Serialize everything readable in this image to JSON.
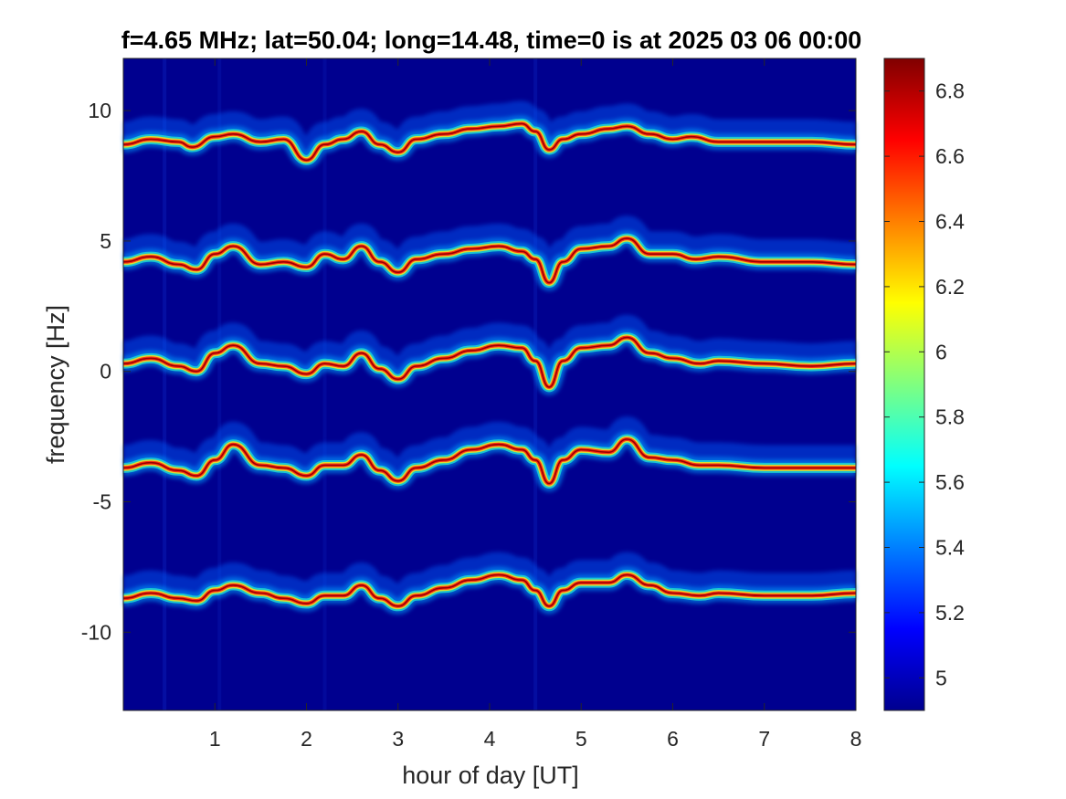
{
  "chart_data": {
    "type": "heatmap",
    "title": "f=4.65 MHz;  lat=50.04; long=14.48, time=0 is at 2025 03 06 00:00",
    "xlabel": "hour of day [UT]",
    "ylabel": "frequency [Hz]",
    "xlim": [
      0,
      8
    ],
    "ylim": [
      -13,
      12
    ],
    "xticks": [
      1,
      2,
      3,
      4,
      5,
      6,
      7,
      8
    ],
    "xtick_labels": [
      "1",
      "2",
      "3",
      "4",
      "5",
      "6",
      "7",
      "8"
    ],
    "yticks": [
      10,
      5,
      0,
      -5,
      -10
    ],
    "ytick_labels": [
      "10",
      "5",
      "0",
      "-5",
      "-10"
    ],
    "colorbar": {
      "range": [
        4.9,
        6.9
      ],
      "ticks": [
        6.8,
        6.6,
        6.4,
        6.2,
        6.0,
        5.8,
        5.6,
        5.4,
        5.2,
        5.0
      ],
      "tick_labels": [
        "6.8",
        "6.6",
        "6.4",
        "6.2",
        "6",
        "5.8",
        "5.6",
        "5.4",
        "5.2",
        "5"
      ],
      "colormap": "jet"
    },
    "background_color": "#00008f",
    "traces": [
      {
        "base_freq": 8.8,
        "points": [
          [
            0,
            8.7
          ],
          [
            0.3,
            8.9
          ],
          [
            0.6,
            8.8
          ],
          [
            0.75,
            8.6
          ],
          [
            1.0,
            9.0
          ],
          [
            1.2,
            9.1
          ],
          [
            1.5,
            8.8
          ],
          [
            1.75,
            8.9
          ],
          [
            2.0,
            8.1
          ],
          [
            2.2,
            8.7
          ],
          [
            2.4,
            8.9
          ],
          [
            2.6,
            9.2
          ],
          [
            2.8,
            8.7
          ],
          [
            3.0,
            8.4
          ],
          [
            3.2,
            8.9
          ],
          [
            3.5,
            9.1
          ],
          [
            3.8,
            9.3
          ],
          [
            4.1,
            9.4
          ],
          [
            4.35,
            9.5
          ],
          [
            4.5,
            9.2
          ],
          [
            4.65,
            8.5
          ],
          [
            4.8,
            8.9
          ],
          [
            5.0,
            9.1
          ],
          [
            5.3,
            9.3
          ],
          [
            5.5,
            9.4
          ],
          [
            5.75,
            9.1
          ],
          [
            6.0,
            8.9
          ],
          [
            6.2,
            9.0
          ],
          [
            6.5,
            8.8
          ],
          [
            7.0,
            8.8
          ],
          [
            7.5,
            8.8
          ],
          [
            8.0,
            8.7
          ]
        ]
      },
      {
        "base_freq": 4.2,
        "points": [
          [
            0,
            4.2
          ],
          [
            0.3,
            4.4
          ],
          [
            0.6,
            4.1
          ],
          [
            0.8,
            3.9
          ],
          [
            1.0,
            4.5
          ],
          [
            1.2,
            4.8
          ],
          [
            1.5,
            4.1
          ],
          [
            1.75,
            4.2
          ],
          [
            2.0,
            4.0
          ],
          [
            2.2,
            4.5
          ],
          [
            2.4,
            4.3
          ],
          [
            2.6,
            4.8
          ],
          [
            2.8,
            4.2
          ],
          [
            3.0,
            3.8
          ],
          [
            3.2,
            4.3
          ],
          [
            3.5,
            4.5
          ],
          [
            3.8,
            4.7
          ],
          [
            4.1,
            4.8
          ],
          [
            4.35,
            4.6
          ],
          [
            4.5,
            4.3
          ],
          [
            4.65,
            3.4
          ],
          [
            4.8,
            4.2
          ],
          [
            5.0,
            4.7
          ],
          [
            5.3,
            4.8
          ],
          [
            5.5,
            5.1
          ],
          [
            5.75,
            4.5
          ],
          [
            6.0,
            4.5
          ],
          [
            6.25,
            4.3
          ],
          [
            6.5,
            4.4
          ],
          [
            7.0,
            4.2
          ],
          [
            7.5,
            4.2
          ],
          [
            8.0,
            4.1
          ]
        ]
      },
      {
        "base_freq": 0.3,
        "points": [
          [
            0,
            0.3
          ],
          [
            0.3,
            0.5
          ],
          [
            0.6,
            0.2
          ],
          [
            0.8,
            0.0
          ],
          [
            1.0,
            0.7
          ],
          [
            1.2,
            1.0
          ],
          [
            1.5,
            0.3
          ],
          [
            1.75,
            0.2
          ],
          [
            2.0,
            -0.1
          ],
          [
            2.2,
            0.3
          ],
          [
            2.4,
            0.2
          ],
          [
            2.6,
            0.7
          ],
          [
            2.8,
            0.1
          ],
          [
            3.0,
            -0.3
          ],
          [
            3.2,
            0.2
          ],
          [
            3.5,
            0.5
          ],
          [
            3.8,
            0.8
          ],
          [
            4.1,
            1.0
          ],
          [
            4.35,
            0.9
          ],
          [
            4.5,
            0.4
          ],
          [
            4.65,
            -0.6
          ],
          [
            4.8,
            0.4
          ],
          [
            5.0,
            0.9
          ],
          [
            5.3,
            1.0
          ],
          [
            5.5,
            1.3
          ],
          [
            5.75,
            0.7
          ],
          [
            6.0,
            0.5
          ],
          [
            6.3,
            0.3
          ],
          [
            6.5,
            0.4
          ],
          [
            7.0,
            0.3
          ],
          [
            7.5,
            0.2
          ],
          [
            8.0,
            0.3
          ]
        ]
      },
      {
        "base_freq": -3.7,
        "points": [
          [
            0,
            -3.7
          ],
          [
            0.3,
            -3.5
          ],
          [
            0.6,
            -3.8
          ],
          [
            0.8,
            -4.0
          ],
          [
            1.0,
            -3.4
          ],
          [
            1.2,
            -2.8
          ],
          [
            1.5,
            -3.6
          ],
          [
            1.75,
            -3.7
          ],
          [
            2.0,
            -4.0
          ],
          [
            2.2,
            -3.6
          ],
          [
            2.4,
            -3.6
          ],
          [
            2.6,
            -3.2
          ],
          [
            2.8,
            -3.8
          ],
          [
            3.0,
            -4.2
          ],
          [
            3.2,
            -3.7
          ],
          [
            3.5,
            -3.4
          ],
          [
            3.8,
            -3.0
          ],
          [
            4.1,
            -2.8
          ],
          [
            4.35,
            -3.0
          ],
          [
            4.5,
            -3.4
          ],
          [
            4.65,
            -4.3
          ],
          [
            4.8,
            -3.4
          ],
          [
            5.0,
            -3.0
          ],
          [
            5.3,
            -3.1
          ],
          [
            5.5,
            -2.6
          ],
          [
            5.75,
            -3.3
          ],
          [
            6.0,
            -3.4
          ],
          [
            6.3,
            -3.6
          ],
          [
            6.5,
            -3.6
          ],
          [
            7.0,
            -3.7
          ],
          [
            7.5,
            -3.7
          ],
          [
            8.0,
            -3.7
          ]
        ]
      },
      {
        "base_freq": -8.7,
        "points": [
          [
            0,
            -8.7
          ],
          [
            0.3,
            -8.5
          ],
          [
            0.6,
            -8.7
          ],
          [
            0.8,
            -8.8
          ],
          [
            1.0,
            -8.4
          ],
          [
            1.2,
            -8.2
          ],
          [
            1.5,
            -8.5
          ],
          [
            1.75,
            -8.7
          ],
          [
            2.0,
            -8.9
          ],
          [
            2.2,
            -8.6
          ],
          [
            2.4,
            -8.6
          ],
          [
            2.6,
            -8.2
          ],
          [
            2.8,
            -8.7
          ],
          [
            3.0,
            -9.0
          ],
          [
            3.2,
            -8.6
          ],
          [
            3.5,
            -8.3
          ],
          [
            3.8,
            -8.0
          ],
          [
            4.1,
            -7.8
          ],
          [
            4.35,
            -8.0
          ],
          [
            4.5,
            -8.4
          ],
          [
            4.65,
            -9.0
          ],
          [
            4.8,
            -8.4
          ],
          [
            5.0,
            -8.1
          ],
          [
            5.3,
            -8.1
          ],
          [
            5.5,
            -7.8
          ],
          [
            5.75,
            -8.2
          ],
          [
            6.0,
            -8.5
          ],
          [
            6.3,
            -8.6
          ],
          [
            6.5,
            -8.5
          ],
          [
            7.0,
            -8.6
          ],
          [
            7.5,
            -8.6
          ],
          [
            8.0,
            -8.5
          ]
        ]
      }
    ]
  }
}
